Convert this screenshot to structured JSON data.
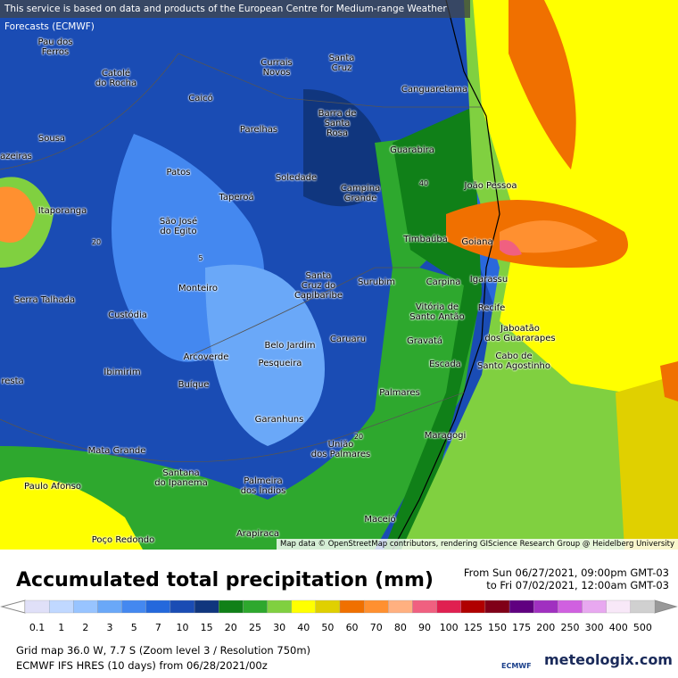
{
  "notice": "This service is based on data and products of the European Centre for Medium-range Weather Forecasts (ECMWF)",
  "map": {
    "places": [
      "Pau dos\nFerros",
      "Catolé\ndo Rocha",
      "Currais\nNovos",
      "Santa\nCruz",
      "Canguaretama",
      "Caicó",
      "Barra de\nSanta\nRosa",
      "Parelhas",
      "Sousa",
      "azeiras",
      "Guarabira",
      "Patos",
      "Soledade",
      "Campina\nGrande",
      "João Pessoa",
      "Taperoá",
      "Itaporanga",
      "São José\ndo Egito",
      "Timbaúba",
      "Goiana",
      "Monteiro",
      "Santa\nCruz do\nCapibaribe",
      "Surubim",
      "Carpina",
      "Igarassu",
      "Serra Talhada",
      "Custódia",
      "Vitória de\nSanto Antão",
      "Recife",
      "Jaboatão\ndos Guararapes",
      "Belo Jardim",
      "Caruaru",
      "Gravatá",
      "Arcoverde",
      "Pesqueira",
      "Escada",
      "Cabo de\nSanto Agostinho",
      "Ibimirim",
      "resta",
      "Buíque",
      "Palmares",
      "Garanhuns",
      "União\ndos Palmares",
      "Maragogi",
      "Mata Grande",
      "Santana\ndo Ipanema",
      "Paulo Afonso",
      "Palmeira\ndos Índios",
      "Maceió",
      "Arapiraca",
      "Poço Redondo"
    ],
    "contour_labels": [
      "40",
      "20",
      "5",
      "20"
    ],
    "attribution": "Map data © OpenStreetMap contributors, rendering GIScience Research Group @ Heidelberg University"
  },
  "title": "Accumulated total precipitation (mm)",
  "period": {
    "from": "From Sun 06/27/2021, 09:00pm GMT-03",
    "to": "to Fri 07/02/2021, 12:00am GMT-03"
  },
  "legend": {
    "values": [
      0.1,
      1,
      2,
      3,
      5,
      7,
      10,
      15,
      20,
      25,
      30,
      40,
      50,
      60,
      70,
      80,
      90,
      100,
      125,
      150,
      175,
      200,
      250,
      300,
      400,
      500
    ],
    "colors": [
      "#e0e0f8",
      "#c0d8ff",
      "#98c4ff",
      "#6aa8f8",
      "#4488f0",
      "#2468dc",
      "#1a4cb4",
      "#10367e",
      "#108018",
      "#2ea82e",
      "#80d040",
      "#ffff00",
      "#e0d000",
      "#f07000",
      "#ff9030",
      "#ffb080",
      "#f06080",
      "#e02050",
      "#b00000",
      "#800018",
      "#600080",
      "#a030c0",
      "#d060e0",
      "#e8a8f0",
      "#f8e8f8",
      "#d0d0d0"
    ]
  },
  "footer": {
    "grid": "Grid map 36.0 W, 7.7 S (Zoom level 3 / Resolution 750m)",
    "model": "ECMWF IFS HRES (10 days) from 06/28/2021/00z"
  },
  "logos": {
    "ecmwf": "ECMWF",
    "meteologix": "meteologix.com"
  }
}
